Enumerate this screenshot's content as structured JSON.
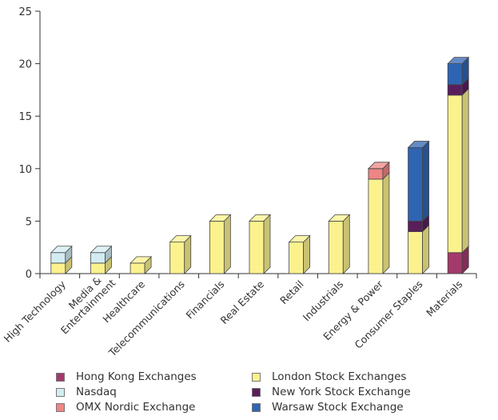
{
  "chart_data": {
    "type": "bar",
    "stacked": true,
    "categories": [
      "High Technology",
      "Media & Entertainment",
      "Healthcare",
      "Telecommunications",
      "Financials",
      "Real Estate",
      "Retail",
      "Industrials",
      "Energy & Power",
      "Consumer Staples",
      "Materials"
    ],
    "series": [
      {
        "name": "Hong Kong Exchanges",
        "color": "#a33a6c",
        "values": [
          0,
          0,
          0,
          0,
          0,
          0,
          0,
          0,
          0,
          0,
          2
        ]
      },
      {
        "name": "London Stock Exchanges",
        "color": "#fbf28e",
        "values": [
          1,
          1,
          1,
          3,
          5,
          5,
          3,
          5,
          9,
          4,
          15
        ]
      },
      {
        "name": "New York Stock Exchange",
        "color": "#5a1e5c",
        "values": [
          0,
          0,
          0,
          0,
          0,
          0,
          0,
          0,
          0,
          1,
          1
        ]
      },
      {
        "name": "OMX Nordic Exchange",
        "color": "#ef8585",
        "values": [
          0,
          0,
          0,
          0,
          0,
          0,
          0,
          0,
          1,
          0,
          0
        ]
      },
      {
        "name": "Nasdaq",
        "color": "#d2ecf2",
        "values": [
          1,
          1,
          0,
          0,
          0,
          0,
          0,
          0,
          0,
          0,
          0
        ]
      },
      {
        "name": "Warsaw Stock Exchange",
        "color": "#2f64b3",
        "values": [
          0,
          0,
          0,
          0,
          0,
          0,
          0,
          0,
          0,
          7,
          2
        ]
      }
    ],
    "ylim": [
      0,
      25
    ],
    "yticks": [
      0,
      5,
      10,
      15,
      20,
      25
    ],
    "xlabel": "",
    "ylabel": "",
    "title": "",
    "legend_position": "bottom",
    "grid": false
  },
  "legend": {
    "items": [
      {
        "name": "Hong Kong Exchanges",
        "color": "#a33a6c"
      },
      {
        "name": "London Stock Exchanges",
        "color": "#fbf28e"
      },
      {
        "name": "Nasdaq",
        "color": "#d2ecf2"
      },
      {
        "name": "New York Stock Exchange",
        "color": "#5a1e5c"
      },
      {
        "name": "OMX Nordic Exchange",
        "color": "#ef8585"
      },
      {
        "name": "Warsaw Stock Exchange",
        "color": "#2f64b3"
      }
    ]
  }
}
